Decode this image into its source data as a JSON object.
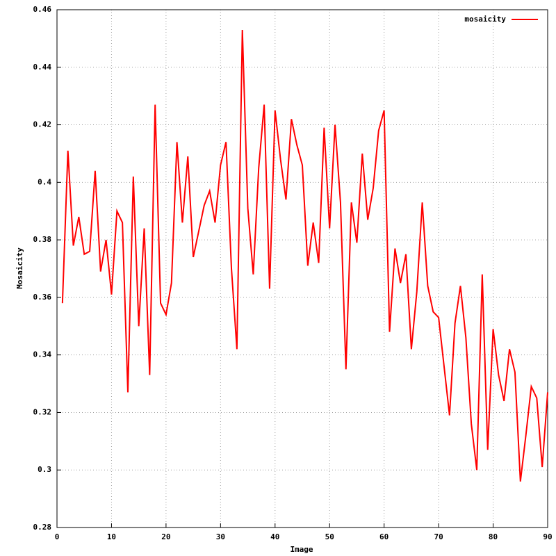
{
  "chart_data": {
    "type": "line",
    "xlabel": "Image",
    "ylabel": "Mosaicity",
    "x": [
      1,
      2,
      3,
      4,
      5,
      6,
      7,
      8,
      9,
      10,
      11,
      12,
      13,
      14,
      15,
      16,
      17,
      18,
      19,
      20,
      21,
      22,
      23,
      24,
      25,
      26,
      27,
      28,
      29,
      30,
      31,
      32,
      33,
      34,
      35,
      36,
      37,
      38,
      39,
      40,
      41,
      42,
      43,
      44,
      45,
      46,
      47,
      48,
      49,
      50,
      51,
      52,
      53,
      54,
      55,
      56,
      57,
      58,
      59,
      60,
      61,
      62,
      63,
      64,
      65,
      66,
      67,
      68,
      69,
      70,
      71,
      72,
      73,
      74,
      75,
      76,
      77,
      78,
      79,
      80,
      81,
      82,
      83,
      84,
      85,
      86,
      87,
      88,
      89,
      90
    ],
    "series": [
      {
        "name": "mosaicity",
        "color": "#ff0000",
        "values": [
          0.358,
          0.411,
          0.378,
          0.388,
          0.375,
          0.376,
          0.404,
          0.369,
          0.38,
          0.361,
          0.39,
          0.386,
          0.327,
          0.402,
          0.35,
          0.384,
          0.333,
          0.427,
          0.358,
          0.354,
          0.365,
          0.414,
          0.386,
          0.409,
          0.374,
          0.383,
          0.392,
          0.397,
          0.386,
          0.406,
          0.414,
          0.37,
          0.342,
          0.453,
          0.391,
          0.368,
          0.405,
          0.427,
          0.363,
          0.425,
          0.408,
          0.394,
          0.422,
          0.413,
          0.406,
          0.371,
          0.386,
          0.372,
          0.419,
          0.384,
          0.42,
          0.393,
          0.335,
          0.393,
          0.379,
          0.41,
          0.387,
          0.398,
          0.418,
          0.425,
          0.348,
          0.377,
          0.365,
          0.375,
          0.342,
          0.362,
          0.393,
          0.364,
          0.355,
          0.353,
          0.336,
          0.319,
          0.351,
          0.364,
          0.346,
          0.316,
          0.3,
          0.368,
          0.307,
          0.349,
          0.333,
          0.324,
          0.342,
          0.334,
          0.296,
          0.312,
          0.329,
          0.325,
          0.301,
          0.327
        ]
      }
    ],
    "xlim": [
      0,
      90
    ],
    "xticks": [
      0,
      10,
      20,
      30,
      40,
      50,
      60,
      70,
      80,
      90
    ],
    "ylim": [
      0.28,
      0.46
    ],
    "yticks": [
      0.28,
      0.3,
      0.32,
      0.34,
      0.36,
      0.38,
      0.4,
      0.42,
      0.44,
      0.46
    ],
    "grid": true,
    "legend": "top-right"
  }
}
